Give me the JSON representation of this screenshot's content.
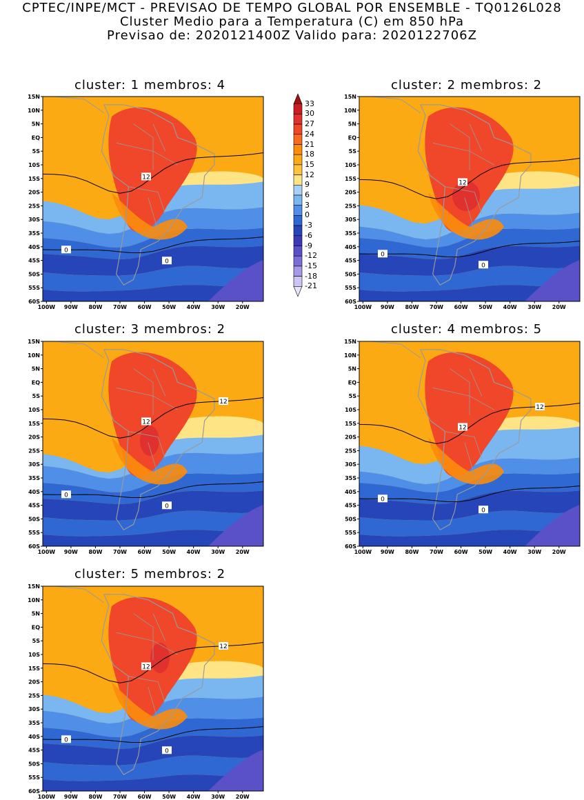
{
  "header": {
    "line1": "CPTEC/INPE/MCT - PREVISAO DE TEMPO GLOBAL POR ENSEMBLE - TQ0126L028",
    "line2": "Cluster Medio para a Temperatura (C) em 850 hPa",
    "line3": "Previsao de: 2020121400Z   Valido para: 2020122706Z"
  },
  "lat_labels": [
    "15N",
    "10N",
    "5N",
    "EQ",
    "5S",
    "10S",
    "15S",
    "20S",
    "25S",
    "30S",
    "35S",
    "40S",
    "45S",
    "50S",
    "55S",
    "60S"
  ],
  "lon_labels": [
    "100W",
    "90W",
    "80W",
    "70W",
    "60W",
    "50W",
    "40W",
    "30W",
    "20W"
  ],
  "panels": [
    {
      "title": "cluster: 1   membros: 4",
      "contours": {
        "c12": "12",
        "c0a": "0",
        "c0b": "0"
      }
    },
    {
      "title": "cluster: 2   membros: 2",
      "contours": {
        "c12": "12",
        "c0a": "0",
        "c0b": "0"
      }
    },
    {
      "title": "cluster: 3   membros: 2",
      "contours": {
        "c12": "12",
        "c12b": "12",
        "c0a": "0",
        "c0b": "0"
      }
    },
    {
      "title": "cluster: 4   membros: 5",
      "contours": {
        "c12": "12",
        "c12b": "12",
        "c0a": "0",
        "c0b": "0"
      }
    },
    {
      "title": "cluster: 5   membros: 2",
      "contours": {
        "c12": "12",
        "c12b": "12",
        "c0a": "0",
        "c0b": "0"
      }
    }
  ],
  "colorbar": {
    "labels": [
      "33",
      "30",
      "27",
      "24",
      "21",
      "18",
      "15",
      "12",
      "9",
      "6",
      "3",
      "0",
      "-3",
      "-6",
      "-9",
      "-12",
      "-15",
      "-18",
      "-21"
    ],
    "colors": [
      "#a50f15",
      "#c81e23",
      "#e0312f",
      "#f0462a",
      "#fa6a1e",
      "#fb8c0c",
      "#fcaa13",
      "#fdc43c",
      "#fee485",
      "#a8d0f5",
      "#7ab6ef",
      "#4f8fe8",
      "#2f68d2",
      "#2545b8",
      "#3a3ab5",
      "#5a50c8",
      "#7a6fd8",
      "#a59be6",
      "#cdc6f2",
      "#e8e4fa"
    ]
  },
  "palette": {
    "warm_bg": "#fcaa13",
    "pale_yellow": "#fee485",
    "orange": "#fb8c0c",
    "red_orange": "#f0462a",
    "red": "#e0312f",
    "light_blue": "#7ab6ef",
    "mid_blue": "#4f8fe8",
    "blue": "#2f68d2",
    "dark_blue": "#2545b8",
    "purple": "#5a50c8",
    "land_outline": "#9a9a9a"
  }
}
